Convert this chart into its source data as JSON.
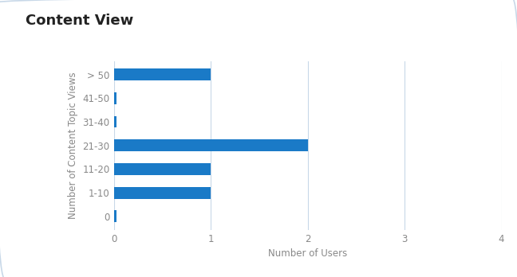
{
  "title": "Content View",
  "categories": [
    "0",
    "1-10",
    "11-20",
    "21-30",
    "31-40",
    "41-50",
    "> 50"
  ],
  "values": [
    0.03,
    1,
    1,
    2,
    0.03,
    0.03,
    1
  ],
  "bar_color": "#1a7ac7",
  "xlabel": "Number of Users",
  "ylabel": "Number of Content Topic Views",
  "xlim": [
    0,
    4
  ],
  "xticks": [
    0,
    1,
    2,
    3,
    4
  ],
  "background_color": "#ffffff",
  "plot_bg_color": "#ffffff",
  "title_fontsize": 13,
  "axis_label_fontsize": 8.5,
  "tick_fontsize": 8.5,
  "bar_height": 0.5,
  "grid_color": "#c8d8e8",
  "frame_color": "#c8d8e8",
  "title_color": "#222222",
  "tick_color": "#888888"
}
